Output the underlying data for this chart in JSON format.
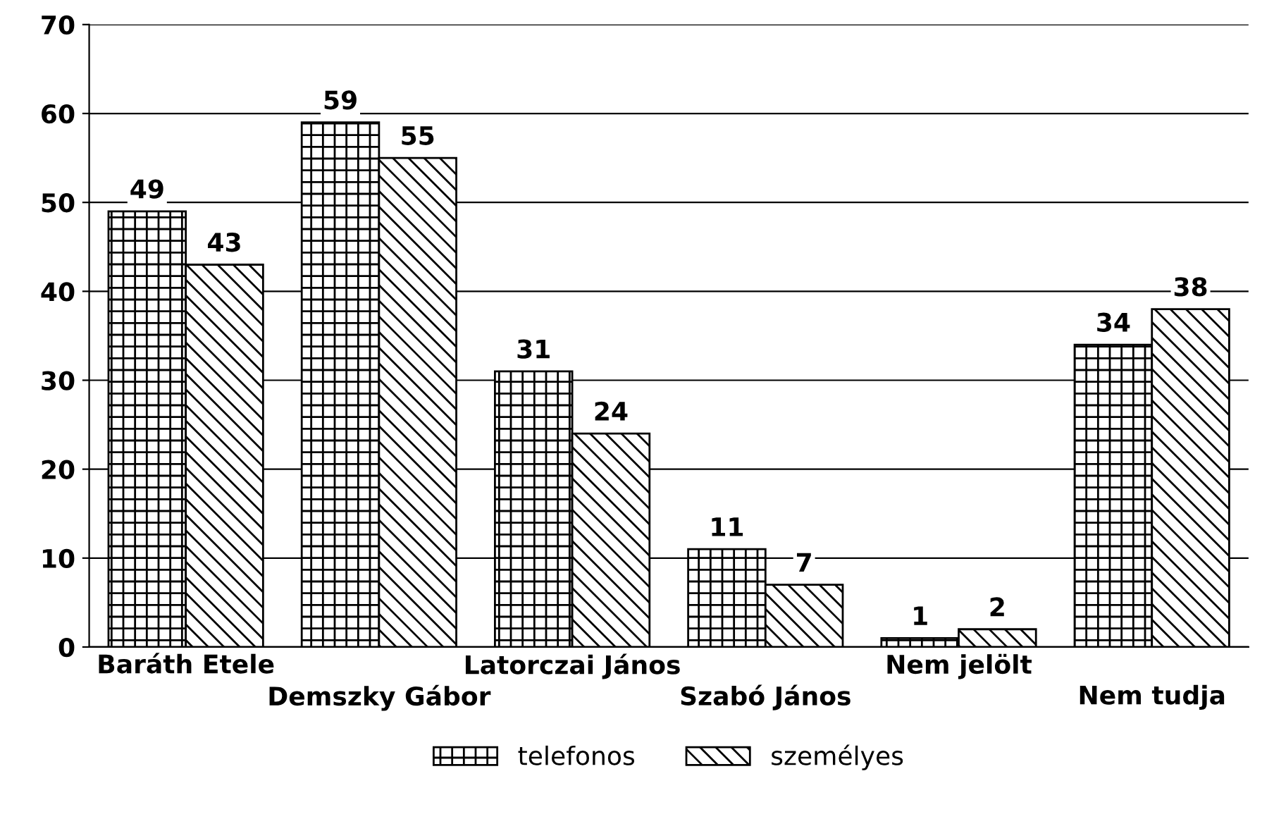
{
  "chart_data": {
    "type": "bar",
    "categories": [
      "Baráth Etele",
      "Demszky Gábor",
      "Latorczai János",
      "Szabó János",
      "Nem jelölt",
      "Nem tudja"
    ],
    "series": [
      {
        "name": "telefonos",
        "color": "#000000",
        "values": [
          49,
          59,
          31,
          11,
          1,
          34
        ]
      },
      {
        "name": "személyes",
        "color": "#000000",
        "values": [
          43,
          55,
          24,
          7,
          2,
          38
        ]
      }
    ],
    "ylim": [
      0,
      70
    ],
    "yticks": [
      0,
      10,
      20,
      30,
      40,
      50,
      60,
      70
    ],
    "grid": "y",
    "legend": "bottom",
    "data_labels": true
  }
}
